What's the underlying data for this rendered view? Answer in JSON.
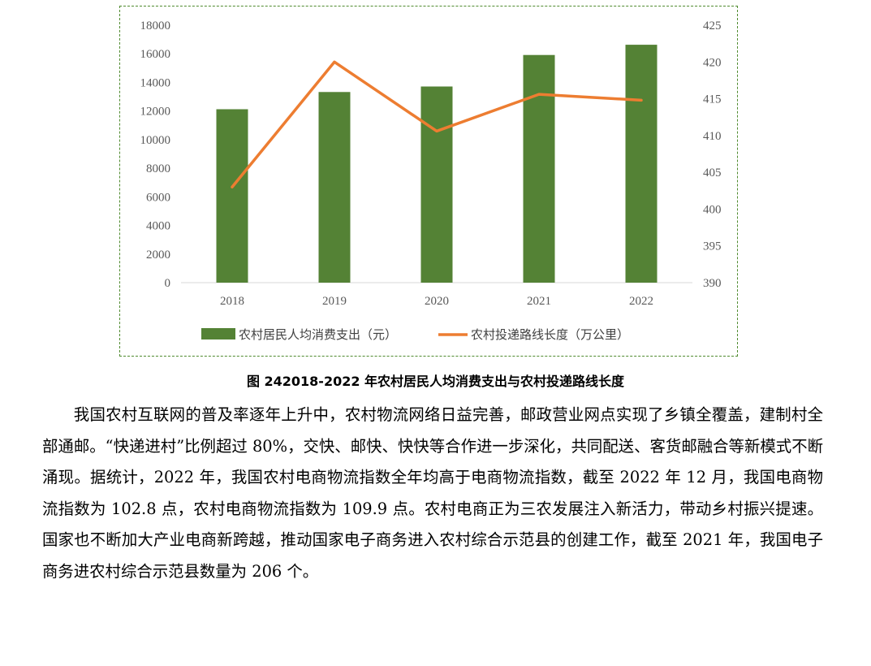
{
  "chart_data": {
    "type": "bar+line",
    "categories": [
      "2018",
      "2019",
      "2020",
      "2021",
      "2022"
    ],
    "series": [
      {
        "name": "农村居民人均消费支出（元）",
        "type": "bar",
        "axis": "left",
        "values": [
          12124,
          13328,
          13713,
          15916,
          16632
        ],
        "color": "#548235"
      },
      {
        "name": "农村投递路线长度（万公里）",
        "type": "line",
        "axis": "right",
        "values": [
          403,
          420,
          410.6,
          415.6,
          414.8
        ],
        "color": "#ed7d31"
      }
    ],
    "left_axis": {
      "ylim": [
        0,
        18000
      ],
      "ticks": [
        "0",
        "2000",
        "4000",
        "6000",
        "8000",
        "10000",
        "12000",
        "14000",
        "16000",
        "18000"
      ]
    },
    "right_axis": {
      "ylim": [
        390,
        425
      ],
      "ticks": [
        "390",
        "395",
        "400",
        "405",
        "410",
        "415",
        "420",
        "425"
      ]
    },
    "legend_position": "bottom",
    "grid": false
  },
  "caption": "图 242018-2022 年农村居民人均消费支出与农村投递路线长度",
  "paragraph": "我国农村互联网的普及率逐年上升中，农村物流网络日益完善，邮政营业网点实现了乡镇全覆盖，建制村全部通邮。“快递进村”比例超过 80%，交快、邮快、快快等合作进一步深化，共同配送、客货邮融合等新模式不断涌现。据统计，2022 年，我国农村电商物流指数全年均高于电商物流指数，截至 2022 年 12 月，我国电商物流指数为 102.8 点，农村电商物流指数为 109.9 点。农村电商正为三农发展注入新活力，带动乡村振兴提速。国家也不断加大产业电商新跨越，推动国家电子商务进入农村综合示范县的创建工作，截至 2021 年，我国电子商务进农村综合示范县数量为 206 个。"
}
